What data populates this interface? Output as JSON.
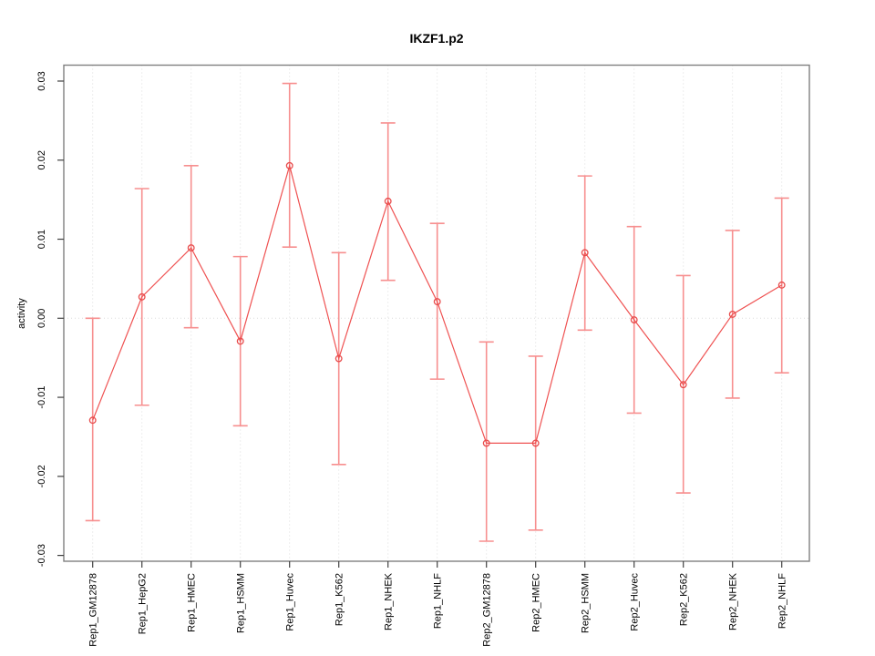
{
  "window": {
    "background": "#ffffff"
  },
  "chart_data": {
    "type": "line",
    "title": "IKZF1.p2",
    "xlabel": "",
    "ylabel": "activity",
    "ylim": [
      -0.03,
      0.03
    ],
    "yticks": {
      "values": [
        0.03,
        0.02,
        0.01,
        0.0,
        -0.01,
        -0.02,
        -0.03
      ],
      "labels": [
        "0.03",
        "0.02",
        "0.01",
        "0.00",
        "-0.01",
        "-0.02",
        "-0.03"
      ]
    },
    "categories": [
      "Rep1_GM12878",
      "Rep1_HepG2",
      "Rep1_HMEC",
      "Rep1_HSMM",
      "Rep1_Huvec",
      "Rep1_K562",
      "Rep1_NHEK",
      "Rep1_NHLF",
      "Rep2_GM12878",
      "Rep2_HMEC",
      "Rep2_HSMM",
      "Rep2_Huvec",
      "Rep2_K562",
      "Rep2_NHEK",
      "Rep2_NHLF"
    ],
    "series": [
      {
        "name": "activity",
        "values": [
          -0.0129,
          0.0027,
          0.0089,
          -0.0029,
          0.0193,
          -0.0051,
          0.0148,
          0.0021,
          -0.0158,
          -0.0158,
          0.0083,
          -0.0002,
          -0.0084,
          0.0005,
          0.0042
        ],
        "error_upper": [
          0.0,
          0.0164,
          0.0193,
          0.0078,
          0.0297,
          0.0083,
          0.0247,
          0.012,
          -0.003,
          -0.0048,
          0.018,
          0.0116,
          0.0054,
          0.0111,
          0.0152
        ],
        "error_lower": [
          -0.0256,
          -0.011,
          -0.0012,
          -0.0136,
          0.009,
          -0.0185,
          0.0048,
          -0.0077,
          -0.0282,
          -0.0268,
          -0.0015,
          -0.012,
          -0.0221,
          -0.0101,
          -0.0069
        ]
      }
    ],
    "grid": {
      "vertical_at_categories": true,
      "horizontal_zero_line": true,
      "style": "dotted"
    },
    "marker": "open-circle",
    "colors": {
      "line": "#ef5252",
      "error_bar": "#f78f8f",
      "point": "#e84c4c",
      "grid": "#dcdcdc",
      "box": "#808080",
      "tick": "#404040",
      "text": "#000000"
    }
  }
}
